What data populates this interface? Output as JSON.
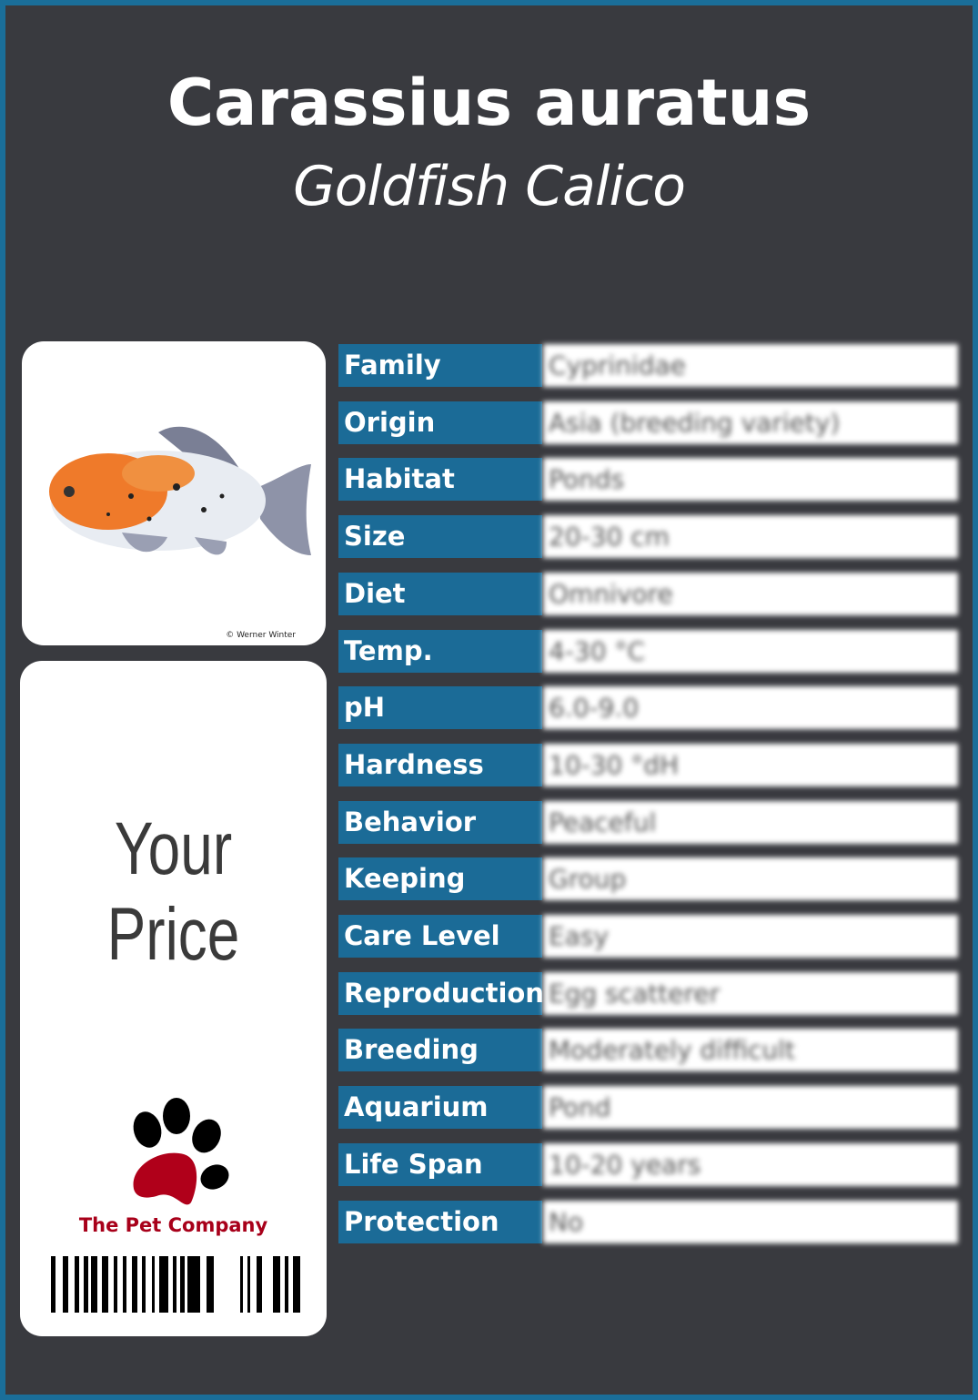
{
  "header": {
    "scientific_name": "Carassius auratus",
    "common_name": "Goldfish Calico"
  },
  "photo": {
    "credit": "© Werner Winter"
  },
  "price_card": {
    "price_label": "Your  Price",
    "company": "The Pet Company"
  },
  "colors": {
    "frame": "#1a6e99",
    "background": "#393a3f",
    "label": "#1b6b97",
    "logo_red": "#a8001a"
  },
  "facts": [
    {
      "label": "Family",
      "value": "Cyprinidae"
    },
    {
      "label": "Origin",
      "value": "Asia (breeding variety)"
    },
    {
      "label": "Habitat",
      "value": "Ponds"
    },
    {
      "label": "Size",
      "value": "20-30 cm"
    },
    {
      "label": "Diet",
      "value": "Omnivore"
    },
    {
      "label": "Temp.",
      "value": "4-30 °C"
    },
    {
      "label": "pH",
      "value": "6.0-9.0"
    },
    {
      "label": "Hardness",
      "value": "10-30 °dH"
    },
    {
      "label": "Behavior",
      "value": "Peaceful"
    },
    {
      "label": "Keeping",
      "value": "Group"
    },
    {
      "label": "Care Level",
      "value": "Easy"
    },
    {
      "label": "Reproduction",
      "value": "Egg scatterer"
    },
    {
      "label": "Breeding",
      "value": "Moderately difficult"
    },
    {
      "label": "Aquarium",
      "value": "Pond"
    },
    {
      "label": "Life Span",
      "value": "10-20 years"
    },
    {
      "label": "Protection",
      "value": "No"
    }
  ]
}
